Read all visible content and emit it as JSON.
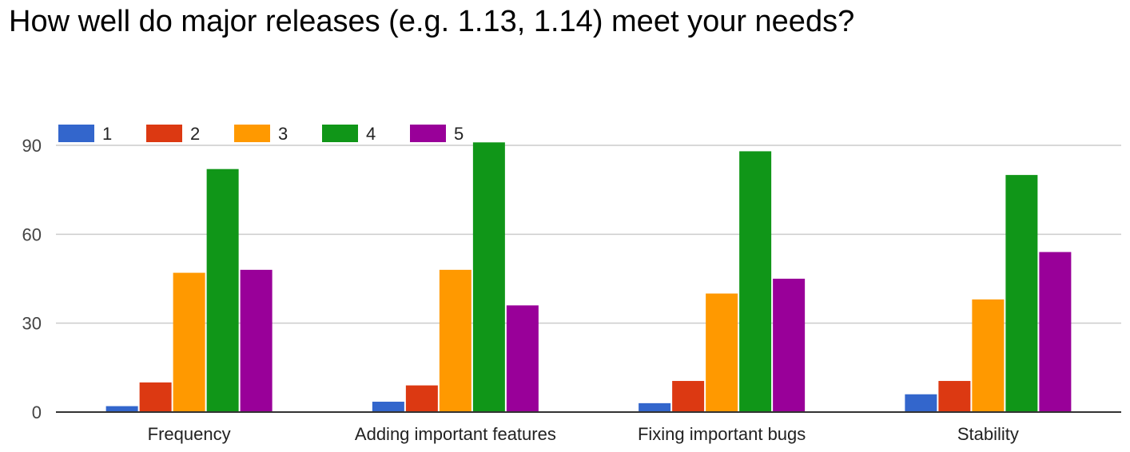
{
  "chart_data": {
    "type": "bar",
    "title": "How well do major releases (e.g. 1.13, 1.14) meet your needs?",
    "xlabel": "",
    "ylabel": "",
    "categories": [
      "Frequency",
      "Adding important features",
      "Fixing important bugs",
      "Stability"
    ],
    "series": [
      {
        "name": "1",
        "color": "#3366cc",
        "values": [
          2,
          3.5,
          3,
          6
        ]
      },
      {
        "name": "2",
        "color": "#dc3912",
        "values": [
          10,
          9,
          10.5,
          10.5
        ]
      },
      {
        "name": "3",
        "color": "#ff9900",
        "values": [
          47,
          48,
          40,
          38
        ]
      },
      {
        "name": "4",
        "color": "#109618",
        "values": [
          82,
          91,
          88,
          80
        ]
      },
      {
        "name": "5",
        "color": "#990099",
        "values": [
          48,
          36,
          45,
          54
        ]
      }
    ],
    "ylim": [
      0,
      90
    ],
    "yticks": [
      "0",
      "30",
      "60",
      "90"
    ],
    "grid": true,
    "legend_position": "top-left"
  }
}
